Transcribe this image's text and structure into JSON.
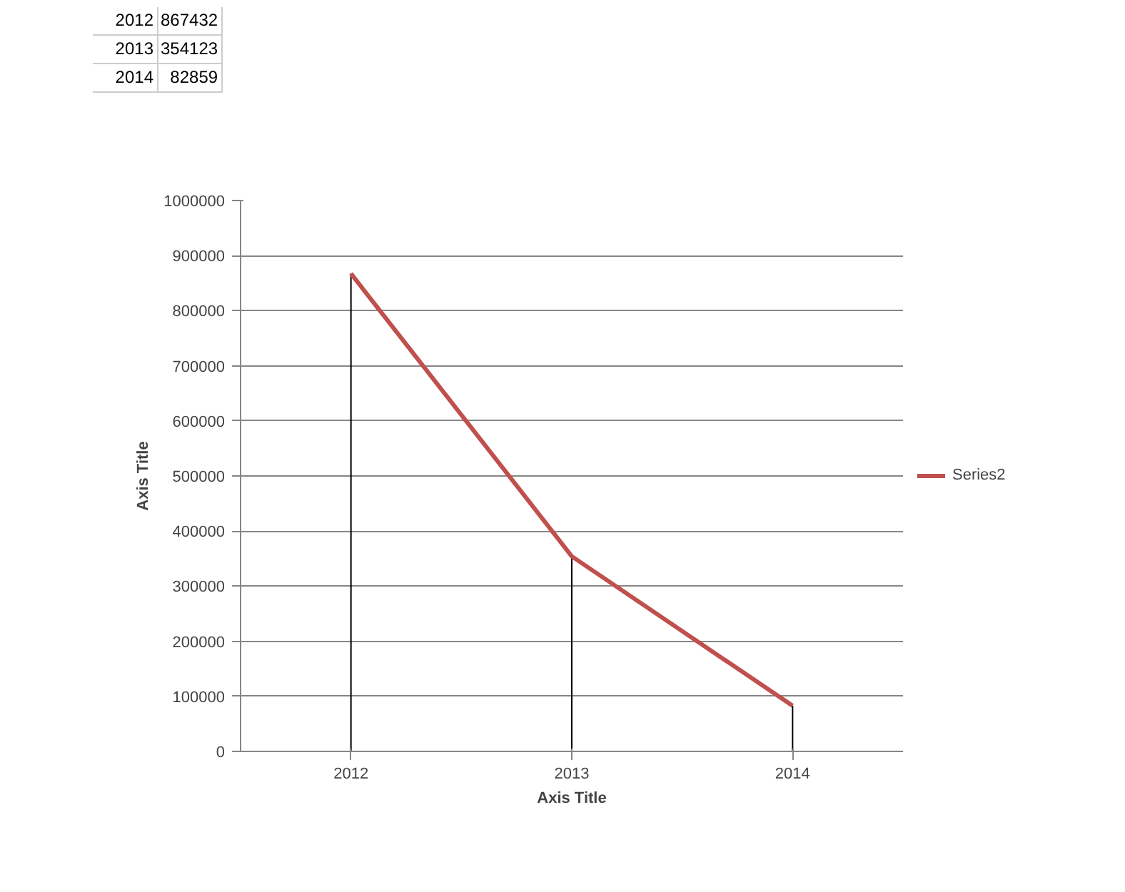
{
  "chart_data": {
    "type": "line",
    "categories": [
      "2012",
      "2013",
      "2014"
    ],
    "series": [
      {
        "name": "Series2",
        "color": "#c0504d",
        "values": [
          867432,
          354123,
          82859
        ],
        "errors": [
          [
            0,
            867432
          ],
          [
            0,
            354123
          ],
          [
            0,
            82859
          ]
        ]
      }
    ],
    "xlabel": "Axis Title",
    "ylabel": "Axis Title",
    "ylim": [
      0,
      1000000
    ],
    "yticks": [
      0,
      100000,
      200000,
      300000,
      400000,
      500000,
      600000,
      700000,
      800000,
      900000,
      1000000
    ],
    "grid": "y",
    "legend": "right",
    "marker": "none",
    "line_style": "solid",
    "annotations": [
      "2012",
      "867432",
      "2013",
      "354123",
      "2014",
      "82859"
    ]
  }
}
